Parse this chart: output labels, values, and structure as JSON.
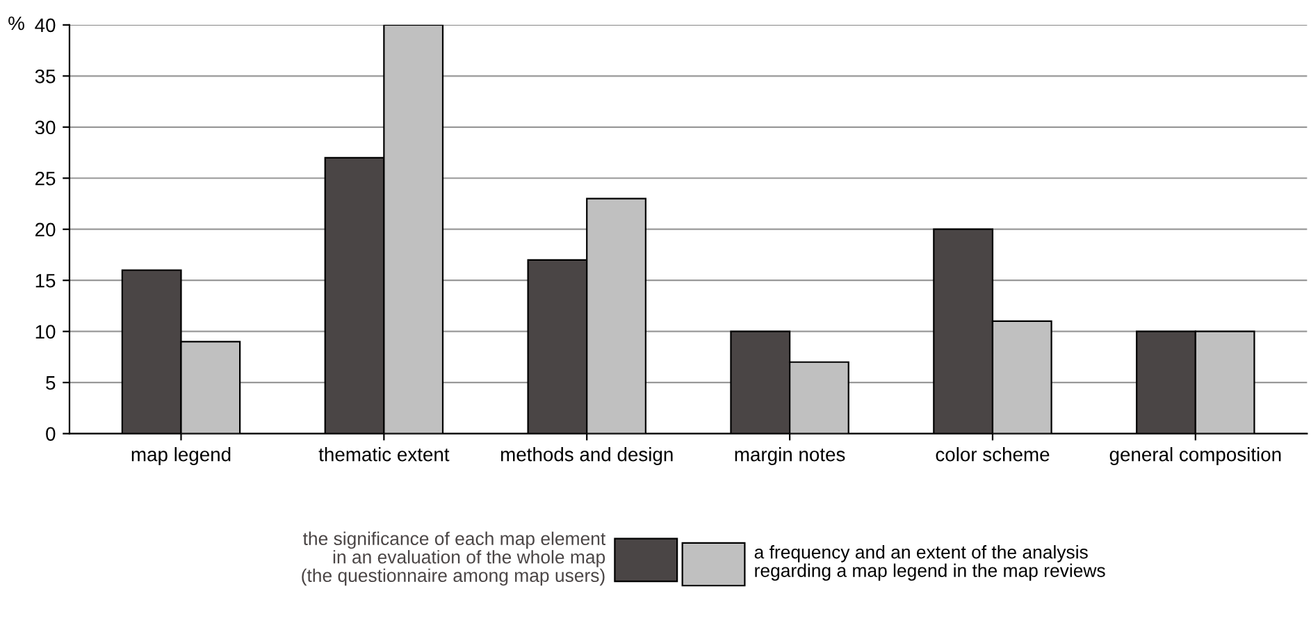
{
  "chart_data": {
    "type": "bar",
    "ylabel": "%",
    "categories": [
      "map legend",
      "thematic extent",
      "methods and design",
      "margin notes",
      "color scheme",
      "general composition"
    ],
    "series": [
      {
        "name": "the significance of each map element\nin an evaluation of the whole map\n(the questionnaire among map users)",
        "color": "#4a4545",
        "values": [
          16,
          27,
          17,
          10,
          20,
          10
        ]
      },
      {
        "name": "a frequency and an extent of the analysis\nregarding a map legend in the map reviews",
        "color": "#c0c0c0",
        "values": [
          9,
          40,
          23,
          7,
          11,
          10
        ]
      }
    ],
    "ylim": [
      0,
      40
    ],
    "yticks": [
      0,
      5,
      10,
      15,
      20,
      25,
      30,
      35,
      40
    ],
    "grid": "y",
    "legend": "bottom"
  }
}
